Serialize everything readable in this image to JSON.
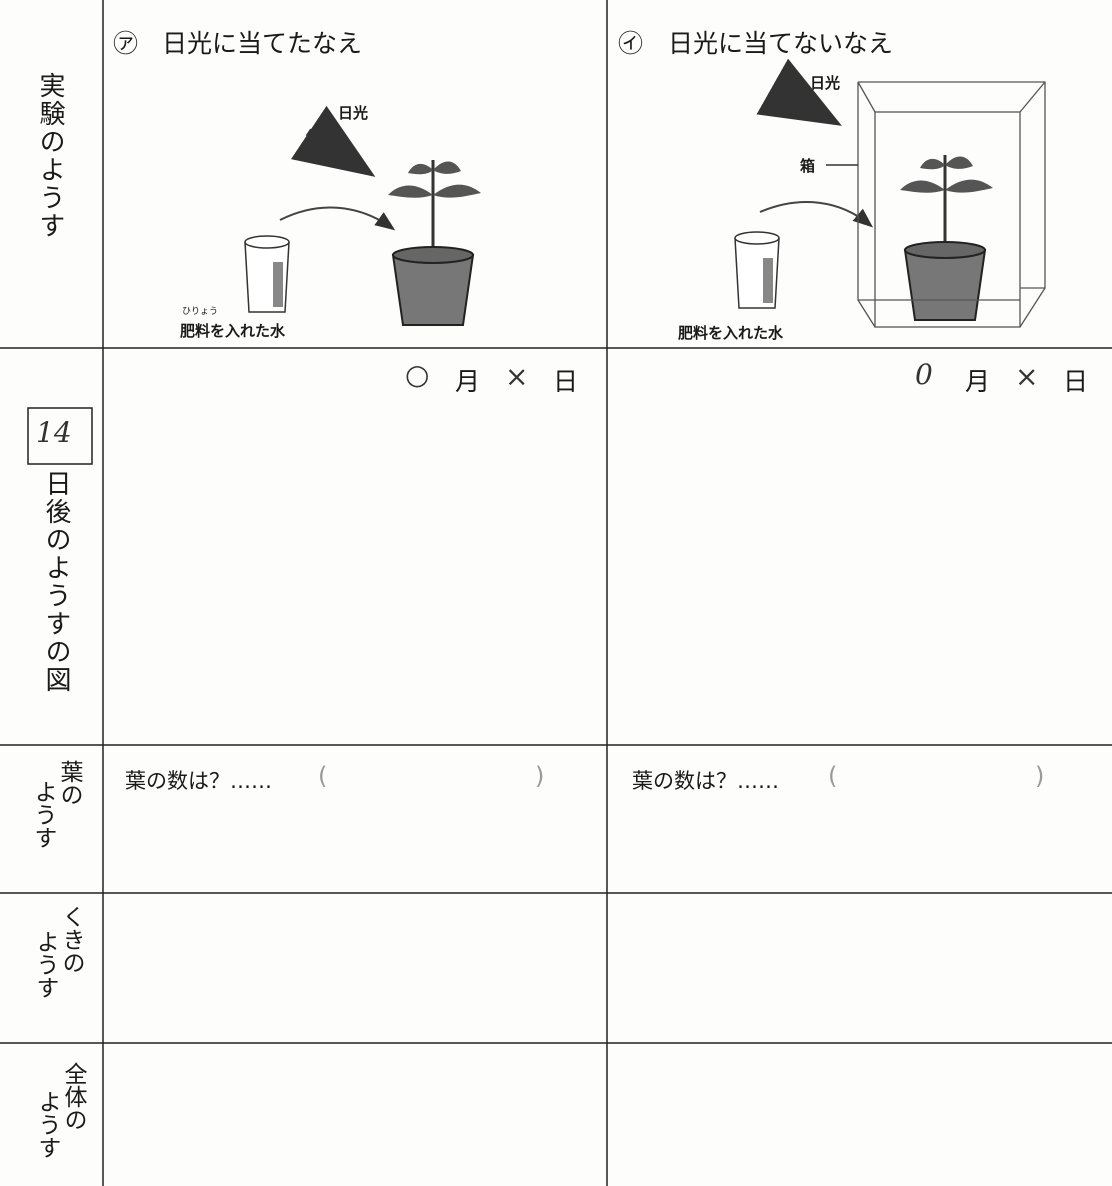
{
  "header": {
    "columns": [
      {
        "marker": "㋐",
        "title": "日光に当てたなえ"
      },
      {
        "marker": "㋑",
        "title": "日光に当てないなえ"
      }
    ]
  },
  "rows": [
    {
      "label": "実験のようす"
    },
    {
      "label_number": "14",
      "label": "日後のようすの図"
    },
    {
      "label_lines": [
        "葉の",
        "ようす"
      ]
    },
    {
      "label_lines": [
        "くきの",
        "ようす"
      ]
    },
    {
      "label_lines": [
        "全体の",
        "ようす"
      ]
    }
  ],
  "illustrations": [
    {
      "sunlight": "日光",
      "ruby": "ひりょう",
      "caption": "肥料を入れた水"
    },
    {
      "sunlight": "日光",
      "box": "箱",
      "caption": "肥料を入れた水"
    }
  ],
  "dates": [
    {
      "month_mark": "○",
      "month": "月",
      "day_mark": "×",
      "day": "日"
    },
    {
      "month_mark": "0",
      "month": "月",
      "day_mark": "×",
      "day": "日"
    }
  ],
  "leaf_count": [
    {
      "prompt": "葉の数は？……",
      "open": "(",
      "close": ")"
    },
    {
      "prompt": "葉の数は？……",
      "open": "(",
      "close": ")"
    }
  ]
}
